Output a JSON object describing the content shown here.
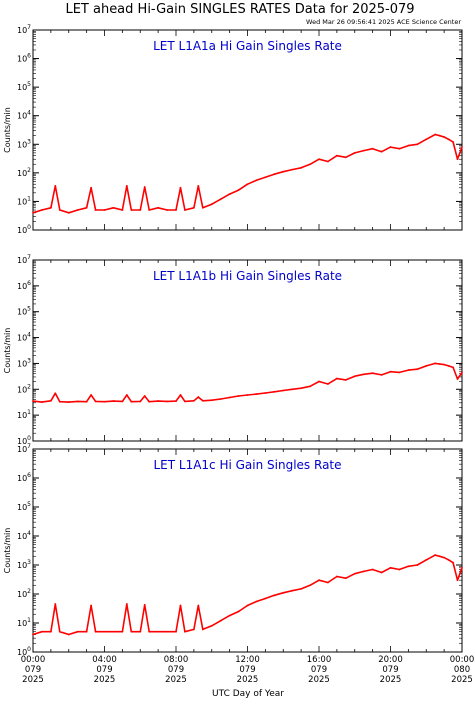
{
  "title": "LET ahead Hi-Gain SINGLES RATES Data for 2025-079",
  "timestamp": "Wed Mar 26 09:56:41 2025 ACE Science Center",
  "xlabel": "UTC Day of Year",
  "colors": {
    "series": "#ff0000",
    "panel_label": "#0000cc",
    "axes": "#000000",
    "background": "#ffffff"
  },
  "chart_data": [
    {
      "type": "line",
      "panel_label": "LET L1A1a Hi Gain Singles Rate",
      "ylabel": "Counts/min",
      "yscale": "log",
      "ylim": [
        1,
        10000000
      ],
      "ytick_labels": [
        {
          "base": "10",
          "exp": "0",
          "value": 1
        },
        {
          "base": "10",
          "exp": "1",
          "value": 10
        },
        {
          "base": "10",
          "exp": "2",
          "value": 100
        },
        {
          "base": "10",
          "exp": "3",
          "value": 1000
        },
        {
          "base": "10",
          "exp": "4",
          "value": 10000
        },
        {
          "base": "10",
          "exp": "5",
          "value": 100000
        },
        {
          "base": "10",
          "exp": "6",
          "value": 1000000
        },
        {
          "base": "10",
          "exp": "7",
          "value": 10000000
        }
      ],
      "xlim_hours": [
        0,
        24
      ],
      "series": [
        {
          "x": [
            0,
            0.5,
            1,
            1.25,
            1.5,
            2,
            2.5,
            3,
            3.25,
            3.5,
            4,
            4.5,
            5,
            5.25,
            5.5,
            6,
            6.25,
            6.5,
            7,
            7.5,
            8,
            8.25,
            8.5,
            9,
            9.25,
            9.5,
            10,
            10.5,
            11,
            11.5,
            12,
            12.5,
            13,
            13.5,
            14,
            14.5,
            15,
            15.5,
            16,
            16.5,
            17,
            17.5,
            18,
            18.5,
            19,
            19.5,
            20,
            20.5,
            21,
            21.5,
            22,
            22.5,
            22.75,
            23,
            23.25,
            23.5,
            23.75,
            24
          ],
          "y": [
            4,
            5,
            6,
            35,
            5,
            4,
            5,
            6,
            30,
            5,
            5,
            6,
            5,
            35,
            5,
            5,
            32,
            5,
            6,
            5,
            5,
            30,
            5,
            6,
            35,
            6,
            8,
            12,
            18,
            25,
            40,
            55,
            70,
            90,
            110,
            130,
            150,
            200,
            300,
            250,
            400,
            350,
            500,
            600,
            700,
            550,
            800,
            700,
            900,
            1000,
            1500,
            2200,
            2000,
            1800,
            1500,
            1200,
            300,
            800
          ]
        }
      ]
    },
    {
      "type": "line",
      "panel_label": "LET L1A1b Hi Gain Singles Rate",
      "ylabel": "Counts/min",
      "yscale": "log",
      "ylim": [
        1,
        10000000
      ],
      "ytick_labels": [
        {
          "base": "10",
          "exp": "0",
          "value": 1
        },
        {
          "base": "10",
          "exp": "1",
          "value": 10
        },
        {
          "base": "10",
          "exp": "2",
          "value": 100
        },
        {
          "base": "10",
          "exp": "3",
          "value": 1000
        },
        {
          "base": "10",
          "exp": "4",
          "value": 10000
        },
        {
          "base": "10",
          "exp": "5",
          "value": 100000
        },
        {
          "base": "10",
          "exp": "6",
          "value": 1000000
        },
        {
          "base": "10",
          "exp": "7",
          "value": 10000000
        }
      ],
      "xlim_hours": [
        0,
        24
      ],
      "series": [
        {
          "x": [
            0,
            0.5,
            1,
            1.25,
            1.5,
            2,
            2.5,
            3,
            3.25,
            3.5,
            4,
            4.5,
            5,
            5.25,
            5.5,
            6,
            6.25,
            6.5,
            7,
            7.5,
            8,
            8.25,
            8.5,
            9,
            9.25,
            9.5,
            10,
            10.5,
            11,
            11.5,
            12,
            12.5,
            13,
            13.5,
            14,
            14.5,
            15,
            15.5,
            16,
            16.5,
            17,
            17.5,
            18,
            18.5,
            19,
            19.5,
            20,
            20.5,
            21,
            21.5,
            22,
            22.5,
            22.75,
            23,
            23.25,
            23.5,
            23.75,
            24
          ],
          "y": [
            35,
            32,
            36,
            70,
            33,
            32,
            34,
            33,
            60,
            34,
            33,
            35,
            34,
            60,
            33,
            34,
            55,
            33,
            35,
            34,
            35,
            60,
            34,
            36,
            50,
            36,
            38,
            42,
            48,
            55,
            60,
            65,
            72,
            80,
            90,
            100,
            110,
            130,
            200,
            160,
            260,
            230,
            320,
            380,
            420,
            360,
            480,
            450,
            550,
            600,
            800,
            1000,
            950,
            900,
            800,
            700,
            250,
            450
          ]
        }
      ]
    },
    {
      "type": "line",
      "panel_label": "LET L1A1c Hi Gain Singles Rate",
      "ylabel": "Counts/min",
      "yscale": "log",
      "ylim": [
        1,
        10000000
      ],
      "ytick_labels": [
        {
          "base": "10",
          "exp": "0",
          "value": 1
        },
        {
          "base": "10",
          "exp": "1",
          "value": 10
        },
        {
          "base": "10",
          "exp": "2",
          "value": 100
        },
        {
          "base": "10",
          "exp": "3",
          "value": 1000
        },
        {
          "base": "10",
          "exp": "4",
          "value": 10000
        },
        {
          "base": "10",
          "exp": "5",
          "value": 100000
        },
        {
          "base": "10",
          "exp": "6",
          "value": 1000000
        },
        {
          "base": "10",
          "exp": "7",
          "value": 10000000
        }
      ],
      "xlim_hours": [
        0,
        24
      ],
      "series": [
        {
          "x": [
            0,
            0.5,
            1,
            1.25,
            1.5,
            2,
            2.5,
            3,
            3.25,
            3.5,
            4,
            4.5,
            5,
            5.25,
            5.5,
            6,
            6.25,
            6.5,
            7,
            7.5,
            8,
            8.25,
            8.5,
            9,
            9.25,
            9.5,
            10,
            10.5,
            11,
            11.5,
            12,
            12.5,
            13,
            13.5,
            14,
            14.5,
            15,
            15.5,
            16,
            16.5,
            17,
            17.5,
            18,
            18.5,
            19,
            19.5,
            20,
            20.5,
            21,
            21.5,
            22,
            22.5,
            22.75,
            23,
            23.25,
            23.5,
            23.75,
            24
          ],
          "y": [
            4,
            5,
            5,
            45,
            5,
            4,
            5,
            5,
            40,
            5,
            5,
            5,
            5,
            45,
            5,
            5,
            42,
            5,
            5,
            5,
            5,
            40,
            5,
            6,
            40,
            6,
            8,
            12,
            18,
            25,
            40,
            55,
            70,
            90,
            110,
            130,
            150,
            200,
            300,
            250,
            400,
            350,
            500,
            600,
            700,
            550,
            800,
            700,
            900,
            1000,
            1500,
            2200,
            2000,
            1800,
            1500,
            1200,
            300,
            800
          ]
        }
      ]
    }
  ],
  "xticks": [
    {
      "hour": 0,
      "time": "00:00",
      "doy": "079",
      "year": "2025"
    },
    {
      "hour": 4,
      "time": "04:00",
      "doy": "079",
      "year": "2025"
    },
    {
      "hour": 8,
      "time": "08:00",
      "doy": "079",
      "year": "2025"
    },
    {
      "hour": 12,
      "time": "12:00",
      "doy": "079",
      "year": "2025"
    },
    {
      "hour": 16,
      "time": "16:00",
      "doy": "079",
      "year": "2025"
    },
    {
      "hour": 20,
      "time": "20:00",
      "doy": "079",
      "year": "2025"
    },
    {
      "hour": 24,
      "time": "00:00",
      "doy": "080",
      "year": "2025"
    }
  ]
}
